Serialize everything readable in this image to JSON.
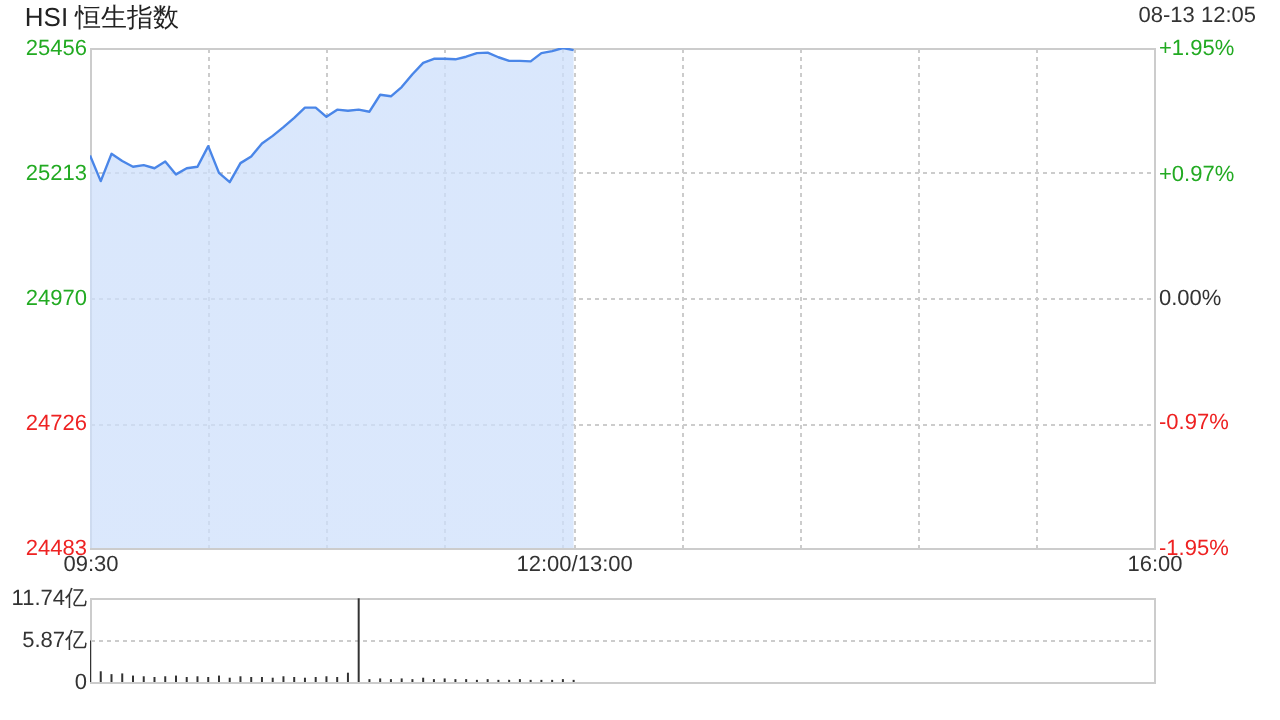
{
  "chart_data": [
    {
      "type": "area",
      "title": "HSI 恒生指数",
      "annotations": [
        "08-13 12:05"
      ],
      "categories": [
        "09:30",
        null,
        null,
        null,
        null,
        null,
        null,
        null,
        null,
        null,
        null,
        null,
        null,
        null,
        null,
        null,
        null,
        null,
        null,
        null,
        null,
        null,
        null,
        null,
        null,
        null,
        null,
        null,
        null,
        null,
        null,
        null,
        null,
        null,
        null,
        null,
        null,
        null,
        null,
        null,
        null,
        null,
        null,
        null,
        null,
        "12:00/13:00",
        null,
        null,
        null,
        null,
        null,
        null,
        null,
        null,
        null,
        null,
        null,
        null,
        null,
        null,
        null,
        null,
        null,
        null,
        null,
        null,
        null,
        null,
        null,
        null,
        null,
        null,
        null,
        null,
        null,
        null,
        null,
        null,
        null,
        null,
        null,
        null,
        null,
        null,
        null,
        null,
        null,
        null,
        null,
        null,
        null,
        null,
        null,
        null,
        null,
        null,
        null,
        null,
        null,
        "16:00"
      ],
      "series": [
        {
          "color": "#4a86e8",
          "values": [
            25247,
            25197,
            25250,
            25236,
            25225,
            25228,
            25222,
            25235,
            25210,
            25222,
            25225,
            25265,
            25213,
            25195,
            25232,
            25245,
            25270,
            25285,
            25302,
            25320,
            25340,
            25340,
            25322,
            25336,
            25334,
            25336,
            25332,
            25365,
            25362,
            25380,
            25405,
            25427,
            25435,
            25435,
            25434,
            25439,
            25446,
            25447,
            25438,
            25431,
            25431,
            25430,
            25446,
            25450,
            25456,
            25452,
            null,
            null,
            null,
            null,
            null,
            null,
            null,
            null,
            null,
            null,
            null,
            null,
            null,
            null,
            null,
            null,
            null,
            null,
            null,
            null,
            null,
            null,
            null,
            null,
            null,
            null,
            null,
            null,
            null,
            null,
            null,
            null,
            null,
            null,
            null,
            null,
            null,
            null,
            null,
            null,
            null,
            null,
            null,
            null,
            null,
            null,
            null,
            null,
            null,
            null,
            null,
            null,
            null,
            null
          ]
        }
      ],
      "ylim": [
        24483,
        25456
      ],
      "yticks": [
        24483,
        24726,
        24970,
        25213,
        25456
      ],
      "y2lim": [
        -1.95,
        1.95
      ],
      "y2ticks": [
        {
          "value": -1.95,
          "label": "-1.95%"
        },
        {
          "value": -0.97,
          "label": "-0.97%"
        },
        {
          "value": 0,
          "label": "0.00%"
        },
        {
          "value": 0.97,
          "label": "+0.97%"
        },
        {
          "value": 1.95,
          "label": "+1.95%"
        }
      ],
      "grid": true
    },
    {
      "type": "bar",
      "categories": [
        null,
        null,
        null,
        null,
        null,
        null,
        null,
        null,
        null,
        null,
        null,
        null,
        null,
        null,
        null,
        null,
        null,
        null,
        null,
        null,
        null,
        null,
        null,
        null,
        null,
        null,
        null,
        null,
        null,
        null,
        null,
        null,
        null,
        null,
        null,
        null,
        null,
        null,
        null,
        null,
        null,
        null,
        null,
        null,
        null,
        null,
        null,
        null,
        null,
        null,
        null,
        null,
        null,
        null,
        null,
        null,
        null,
        null,
        null,
        null,
        null,
        null,
        null,
        null,
        null,
        null,
        null,
        null,
        null,
        null,
        null,
        null,
        null,
        null,
        null,
        null,
        null,
        null,
        null,
        null,
        null,
        null,
        null,
        null,
        null,
        null,
        null,
        null,
        null,
        null,
        null,
        null,
        null,
        null,
        null,
        null,
        null,
        null,
        null,
        null
      ],
      "series": [
        {
          "color": "#333333",
          "values": [
            5.8,
            1.5,
            1.1,
            1.2,
            0.9,
            0.8,
            0.7,
            0.8,
            0.9,
            0.7,
            0.8,
            0.7,
            0.9,
            0.6,
            0.8,
            0.7,
            0.7,
            0.6,
            0.8,
            0.7,
            0.6,
            0.7,
            0.8,
            0.7,
            1.3,
            11.7,
            0.4,
            0.5,
            0.4,
            0.5,
            0.4,
            0.6,
            0.4,
            0.5,
            0.4,
            0.4,
            0.3,
            0.4,
            0.3,
            0.3,
            0.4,
            0.3,
            0.3,
            0.3,
            0.4,
            0.3,
            null,
            null,
            null,
            null,
            null,
            null,
            null,
            null,
            null,
            null,
            null,
            null,
            null,
            null,
            null,
            null,
            null,
            null,
            null,
            null,
            null,
            null,
            null,
            null,
            null,
            null,
            null,
            null,
            null,
            null,
            null,
            null,
            null,
            null,
            null,
            null,
            null,
            null,
            null,
            null,
            null,
            null,
            null,
            null,
            null,
            null,
            null,
            null,
            null,
            null,
            null,
            null,
            null,
            null
          ]
        }
      ],
      "ylim": [
        0,
        11.74
      ],
      "yticks": [
        {
          "value": 0,
          "label": "0"
        },
        {
          "value": 5.87,
          "label": "5.87亿"
        },
        {
          "value": 11.74,
          "label": "11.74亿"
        }
      ],
      "tick_labels": "y",
      "grid": "y"
    }
  ]
}
